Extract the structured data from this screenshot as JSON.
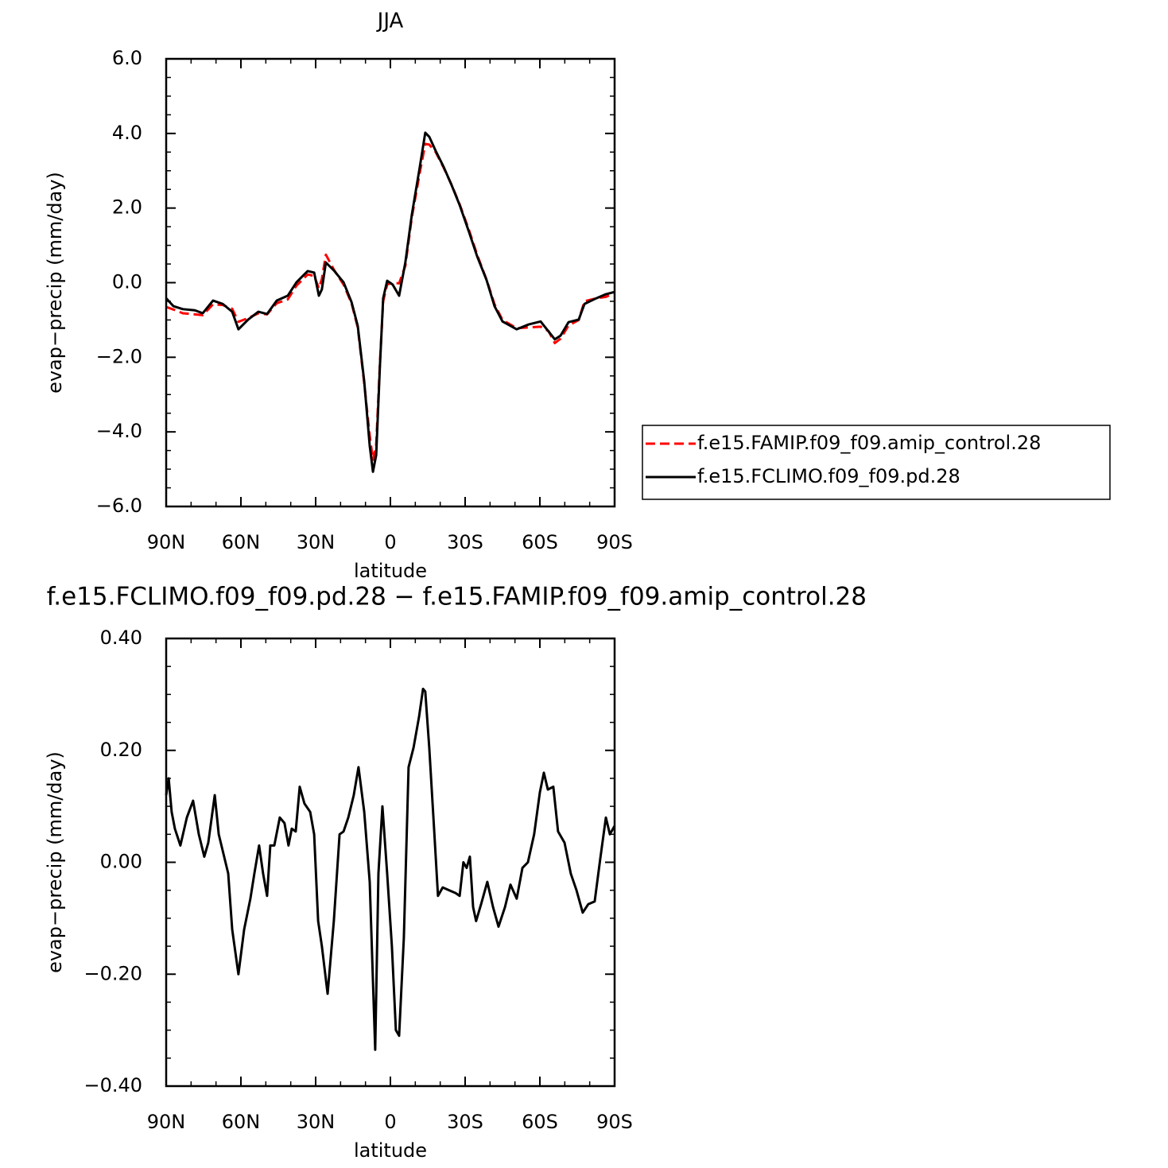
{
  "chart_data": [
    {
      "type": "line",
      "title": "JJA",
      "xlabel": "latitude",
      "ylabel": "evap−precip (mm/day)",
      "x": [
        90,
        87.1,
        83.3,
        78.5,
        75.3,
        71.2,
        67.3,
        63.5,
        61.0,
        57.1,
        53.0,
        49.5,
        45.6,
        41.2,
        37.7,
        33.2,
        30.6,
        28.7,
        27.5,
        25.9,
        22.7,
        18.8,
        15.6,
        13.1,
        10.5,
        8.3,
        7.0,
        5.7,
        4.2,
        2.9,
        1.3,
        -0.9,
        -3.5,
        -6.0,
        -8.6,
        -11.8,
        -14.0,
        -15.6,
        -18.2,
        -21.4,
        -24.6,
        -27.8,
        -31.6,
        -34.8,
        -38.6,
        -41.8,
        -45.0,
        -50.7,
        -55.5,
        -60.3,
        -63.5,
        -66.0,
        -68.3,
        -71.5,
        -75.6,
        -77.9,
        -82.6,
        -86.5,
        -90
      ],
      "series": [
        {
          "name": "f.e15.FAMIP.f09_f09.amip_control.28",
          "color": "#ff0000",
          "dashed": true,
          "values": [
            -0.65,
            -0.72,
            -0.82,
            -0.85,
            -0.87,
            -0.58,
            -0.6,
            -0.7,
            -1.05,
            -0.95,
            -0.82,
            -0.85,
            -0.55,
            -0.45,
            -0.08,
            0.22,
            0.18,
            -0.15,
            0.1,
            0.75,
            0.35,
            -0.05,
            -0.55,
            -1.2,
            -2.7,
            -4.1,
            -4.75,
            -4.35,
            -2.15,
            -0.5,
            -0.05,
            0.0,
            -0.02,
            0.45,
            1.75,
            2.95,
            3.72,
            3.7,
            3.5,
            3.08,
            2.62,
            2.1,
            1.4,
            0.75,
            0.08,
            -0.58,
            -1.0,
            -1.22,
            -1.2,
            -1.18,
            -1.3,
            -1.62,
            -1.5,
            -1.15,
            -1.0,
            -0.5,
            -0.42,
            -0.38,
            -0.28
          ]
        },
        {
          "name": "f.e15.FCLIMO.f09_f09.pd.28",
          "color": "#000000",
          "dashed": false,
          "values": [
            -0.42,
            -0.63,
            -0.71,
            -0.74,
            -0.82,
            -0.48,
            -0.57,
            -0.78,
            -1.25,
            -0.99,
            -0.78,
            -0.84,
            -0.48,
            -0.35,
            0.01,
            0.31,
            0.27,
            -0.35,
            -0.18,
            0.54,
            0.33,
            0.01,
            -0.52,
            -1.16,
            -2.65,
            -4.37,
            -5.07,
            -4.62,
            -2.23,
            -0.42,
            0.05,
            -0.05,
            -0.35,
            0.54,
            1.82,
            3.1,
            4.02,
            3.91,
            3.53,
            3.1,
            2.61,
            2.08,
            1.35,
            0.71,
            0.07,
            -0.63,
            -1.04,
            -1.25,
            -1.12,
            -1.04,
            -1.31,
            -1.52,
            -1.42,
            -1.06,
            -0.99,
            -0.57,
            -0.42,
            -0.31,
            -0.25
          ]
        }
      ],
      "xlim": [
        90,
        -90
      ],
      "xticks": [
        {
          "value": 90,
          "label": "90N"
        },
        {
          "value": 60,
          "label": "60N"
        },
        {
          "value": 30,
          "label": "30N"
        },
        0,
        {
          "value": -30,
          "label": "30S"
        },
        {
          "value": -60,
          "label": "60S"
        },
        {
          "value": -90,
          "label": "90S"
        }
      ],
      "x_minor_ticks": [
        80,
        70,
        50,
        40,
        20,
        10,
        -10,
        -20,
        -40,
        -50,
        -70,
        -80
      ],
      "ylim": [
        -6,
        6
      ],
      "yticks": [
        {
          "value": 6,
          "label": "6.0"
        },
        {
          "value": 4,
          "label": "4.0"
        },
        {
          "value": 2,
          "label": "2.0"
        },
        {
          "value": 0,
          "label": "0.0"
        },
        {
          "value": -2,
          "label": "−2.0"
        },
        {
          "value": -4,
          "label": "−4.0"
        },
        {
          "value": -6,
          "label": "−6.0"
        }
      ],
      "y_minor_ticks": [
        5.5,
        5,
        4.5,
        3.5,
        3,
        2.5,
        1.5,
        1,
        0.5,
        -0.5,
        -1,
        -1.5,
        -2.5,
        -3,
        -3.5,
        -4.5,
        -5,
        -5.5
      ],
      "legend": "outside-right"
    },
    {
      "type": "line",
      "title": "f.e15.FCLIMO.f09_f09.pd.28 − f.e15.FAMIP.f09_f09.amip_control.28",
      "xlabel": "latitude",
      "ylabel": "evap−precip (mm/day)",
      "x": [
        90,
        89.0,
        87.8,
        86.5,
        84.3,
        81.7,
        79.2,
        76.9,
        74.7,
        73.1,
        70.5,
        68.9,
        65.1,
        63.5,
        61.0,
        58.7,
        56.2,
        54.6,
        52.7,
        51.1,
        49.5,
        48.2,
        46.6,
        44.4,
        42.5,
        40.9,
        39.6,
        38.0,
        36.4,
        34.5,
        32.2,
        30.6,
        29.0,
        27.5,
        25.2,
        22.7,
        20.4,
        18.8,
        16.9,
        14.7,
        12.8,
        10.5,
        8.3,
        6.1,
        4.8,
        3.2,
        1.3,
        -0.6,
        -2.2,
        -3.5,
        -5.4,
        -7.3,
        -9.3,
        -11.5,
        -13.1,
        -14.0,
        -15.6,
        -17.6,
        -19.1,
        -21.0,
        -23.6,
        -26.2,
        -27.8,
        -29.3,
        -30.6,
        -31.9,
        -33.2,
        -34.4,
        -36.4,
        -38.9,
        -41.2,
        -43.4,
        -46.0,
        -48.2,
        -50.7,
        -53.0,
        -55.2,
        -57.7,
        -60.0,
        -61.6,
        -63.2,
        -65.4,
        -67.3,
        -69.9,
        -72.4,
        -74.7,
        -77.2,
        -79.4,
        -82.0,
        -84.2,
        -86.5,
        -88.1,
        -90
      ],
      "values": [
        0.12,
        0.15,
        0.09,
        0.06,
        0.03,
        0.08,
        0.11,
        0.05,
        0.01,
        0.035,
        0.12,
        0.05,
        -0.02,
        -0.12,
        -0.2,
        -0.12,
        -0.065,
        -0.02,
        0.03,
        -0.02,
        -0.06,
        0.03,
        0.03,
        0.08,
        0.07,
        0.03,
        0.06,
        0.055,
        0.135,
        0.105,
        0.09,
        0.05,
        -0.105,
        -0.15,
        -0.235,
        -0.105,
        0.05,
        0.055,
        0.08,
        0.12,
        0.17,
        0.09,
        -0.035,
        -0.335,
        -0.02,
        0.1,
        -0.02,
        -0.15,
        -0.3,
        -0.31,
        -0.135,
        0.17,
        0.205,
        0.26,
        0.31,
        0.305,
        0.205,
        0.055,
        -0.06,
        -0.045,
        -0.05,
        -0.055,
        -0.06,
        0.0,
        -0.01,
        0.01,
        -0.08,
        -0.105,
        -0.075,
        -0.035,
        -0.08,
        -0.115,
        -0.08,
        -0.04,
        -0.065,
        -0.01,
        0.0,
        0.05,
        0.125,
        0.16,
        0.13,
        0.135,
        0.055,
        0.035,
        -0.02,
        -0.05,
        -0.09,
        -0.075,
        -0.07,
        0.005,
        0.08,
        0.05,
        0.065
      ],
      "color": "#000000",
      "xlim": [
        90,
        -90
      ],
      "xticks": [
        {
          "value": 90,
          "label": "90N"
        },
        {
          "value": 60,
          "label": "60N"
        },
        {
          "value": 30,
          "label": "30N"
        },
        0,
        {
          "value": -30,
          "label": "30S"
        },
        {
          "value": -60,
          "label": "60S"
        },
        {
          "value": -90,
          "label": "90S"
        }
      ],
      "x_minor_ticks": [
        80,
        70,
        50,
        40,
        20,
        10,
        -10,
        -20,
        -40,
        -50,
        -70,
        -80
      ],
      "ylim": [
        -0.4,
        0.4
      ],
      "yticks": [
        {
          "value": 0.4,
          "label": "0.40"
        },
        {
          "value": 0.2,
          "label": "0.20"
        },
        {
          "value": 0,
          "label": "0.00"
        },
        {
          "value": -0.2,
          "label": "−0.20"
        },
        {
          "value": -0.4,
          "label": "−0.40"
        }
      ],
      "y_minor_ticks": [
        0.35,
        0.3,
        0.25,
        0.15,
        0.1,
        0.05,
        -0.05,
        -0.1,
        -0.15,
        -0.25,
        -0.3,
        -0.35
      ]
    }
  ]
}
